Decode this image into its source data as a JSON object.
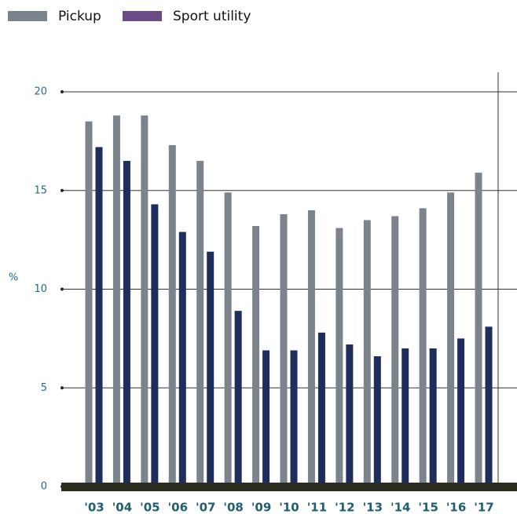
{
  "chart_data": {
    "type": "bar",
    "categories": [
      "'03",
      "'04",
      "'05",
      "'06",
      "'07",
      "'08",
      "'09",
      "'10",
      "'11",
      "'12",
      "'13",
      "'14",
      "'15",
      "'16",
      "'17"
    ],
    "series": [
      {
        "name": "Pickup",
        "color": "#7b848c",
        "values": [
          18.5,
          18.8,
          18.8,
          17.3,
          16.5,
          14.9,
          13.2,
          13.8,
          14.0,
          13.1,
          13.5,
          13.7,
          14.1,
          14.9,
          15.9
        ]
      },
      {
        "name": "Sport utility",
        "color": "#1f2d5c",
        "legend_color": "#6b4c86",
        "values": [
          17.2,
          16.5,
          14.3,
          12.9,
          11.9,
          8.9,
          6.9,
          6.9,
          7.8,
          7.2,
          6.6,
          7.0,
          7.0,
          7.5,
          8.1
        ]
      }
    ],
    "ylabel": "%",
    "ylim": [
      0,
      20
    ],
    "yticks": [
      0,
      5,
      10,
      15,
      20
    ],
    "grid": true,
    "legend": "top-left"
  }
}
